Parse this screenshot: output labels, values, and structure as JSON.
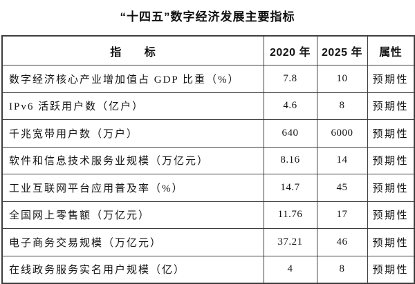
{
  "title": "“十四五”数字经济发展主要指标",
  "colors": {
    "background": "#ffffff",
    "border": "#3d3d3d",
    "text": "#141414"
  },
  "table": {
    "headers": [
      "指　　标",
      "2020 年",
      "2025 年",
      "属性"
    ],
    "rows": [
      {
        "indicator": "数字经济核心产业增加值占 GDP 比重（%）",
        "y2020": "7.8",
        "y2025": "10",
        "attr": "预期性"
      },
      {
        "indicator": "IPv6 活跃用户数（亿户）",
        "y2020": "4.6",
        "y2025": "8",
        "attr": "预期性"
      },
      {
        "indicator": "千兆宽带用户数（万户）",
        "y2020": "640",
        "y2025": "6000",
        "attr": "预期性"
      },
      {
        "indicator": "软件和信息技术服务业规模（万亿元）",
        "y2020": "8.16",
        "y2025": "14",
        "attr": "预期性"
      },
      {
        "indicator": "工业互联网平台应用普及率（%）",
        "y2020": "14.7",
        "y2025": "45",
        "attr": "预期性"
      },
      {
        "indicator": "全国网上零售额（万亿元）",
        "y2020": "11.76",
        "y2025": "17",
        "attr": "预期性"
      },
      {
        "indicator": "电子商务交易规模（万亿元）",
        "y2020": "37.21",
        "y2025": "46",
        "attr": "预期性"
      },
      {
        "indicator": "在线政务服务实名用户规模（亿）",
        "y2020": "4",
        "y2025": "8",
        "attr": "预期性"
      }
    ]
  }
}
